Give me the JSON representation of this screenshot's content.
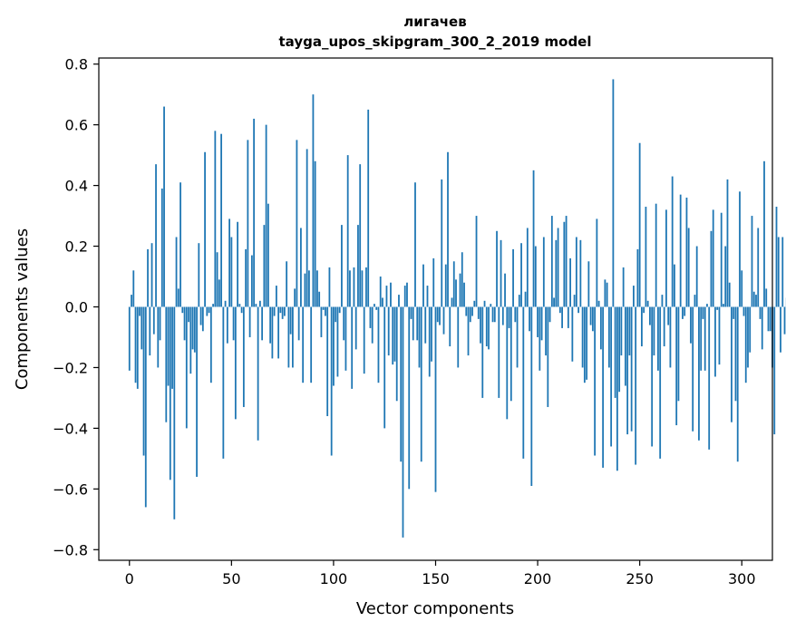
{
  "chart_data": {
    "type": "bar",
    "title_line1": "лигачев",
    "title_line2": "tayga_upos_skipgram_300_2_2019 model",
    "xlabel": "Vector components",
    "ylabel": "Components values",
    "xlim": [
      -15,
      315
    ],
    "ylim": [
      -0.835,
      0.82
    ],
    "xticks": [
      0,
      50,
      100,
      150,
      200,
      250,
      300
    ],
    "yticks": [
      -0.8,
      -0.6,
      -0.4,
      -0.2,
      0.0,
      0.2,
      0.4,
      0.6,
      0.8
    ],
    "ytick_labels": [
      "−0.8",
      "−0.6",
      "−0.4",
      "−0.2",
      "0.0",
      "0.2",
      "0.4",
      "0.6",
      "0.8"
    ],
    "xtick_labels": [
      "0",
      "50",
      "100",
      "150",
      "200",
      "250",
      "300"
    ],
    "series_color": "#1f77b4",
    "values": [
      -0.21,
      0.04,
      0.12,
      -0.25,
      -0.27,
      -0.03,
      -0.14,
      -0.49,
      -0.66,
      0.19,
      -0.16,
      0.21,
      -0.09,
      0.47,
      -0.2,
      -0.11,
      0.39,
      0.66,
      -0.38,
      -0.26,
      -0.57,
      -0.27,
      -0.7,
      0.23,
      0.06,
      0.41,
      -0.02,
      -0.11,
      -0.4,
      -0.05,
      -0.22,
      -0.14,
      -0.15,
      -0.56,
      0.21,
      -0.06,
      -0.08,
      0.51,
      -0.03,
      -0.02,
      -0.25,
      0.01,
      0.58,
      0.18,
      0.09,
      0.57,
      -0.5,
      0.02,
      -0.12,
      0.29,
      0.23,
      -0.11,
      -0.37,
      0.28,
      0.01,
      -0.02,
      -0.33,
      0.19,
      0.55,
      -0.1,
      0.17,
      0.62,
      0.01,
      -0.44,
      0.02,
      -0.11,
      0.27,
      0.6,
      0.34,
      -0.12,
      -0.17,
      -0.03,
      0.07,
      -0.17,
      -0.02,
      -0.04,
      -0.03,
      0.15,
      -0.2,
      -0.09,
      -0.2,
      0.06,
      0.55,
      -0.11,
      0.26,
      -0.25,
      0.11,
      0.52,
      0.12,
      -0.25,
      0.7,
      0.48,
      0.12,
      0.05,
      -0.1,
      -0.01,
      -0.03,
      -0.36,
      0.13,
      -0.49,
      -0.26,
      -0.05,
      -0.23,
      -0.02,
      0.27,
      -0.11,
      -0.21,
      0.5,
      0.12,
      -0.27,
      0.13,
      -0.14,
      0.27,
      0.47,
      0.12,
      -0.22,
      0.13,
      0.65,
      -0.07,
      -0.12,
      0.01,
      -0.01,
      -0.25,
      0.1,
      0.03,
      -0.4,
      0.07,
      -0.16,
      0.08,
      -0.19,
      -0.18,
      -0.31,
      0.04,
      -0.51,
      -0.76,
      0.07,
      0.08,
      -0.6,
      -0.04,
      -0.11,
      0.41,
      -0.11,
      -0.2,
      -0.51,
      0.14,
      -0.12,
      0.07,
      -0.23,
      -0.18,
      0.16,
      -0.61,
      -0.05,
      -0.06,
      0.42,
      -0.09,
      0.14,
      0.51,
      -0.13,
      0.03,
      0.15,
      0.09,
      -0.2,
      0.11,
      0.18,
      0.08,
      -0.03,
      -0.16,
      -0.05,
      -0.03,
      0.02,
      0.3,
      -0.04,
      -0.12,
      -0.3,
      0.02,
      -0.13,
      -0.14,
      0.01,
      -0.05,
      -0.05,
      0.25,
      -0.3,
      0.22,
      -0.06,
      0.11,
      -0.37,
      -0.07,
      -0.31,
      0.19,
      -0.05,
      -0.2,
      0.04,
      0.21,
      -0.5,
      0.05,
      0.26,
      -0.08,
      -0.59,
      0.45,
      0.2,
      -0.1,
      -0.21,
      -0.11,
      0.23,
      -0.16,
      -0.33,
      -0.05,
      0.3,
      0.03,
      0.22,
      0.26,
      -0.02,
      -0.07,
      0.28,
      0.3,
      -0.07,
      0.16,
      -0.18,
      0.04,
      0.23,
      -0.02,
      0.22,
      -0.2,
      -0.25,
      -0.24,
      0.15,
      -0.06,
      -0.08,
      -0.49,
      0.29,
      0.02,
      -0.14,
      -0.53,
      0.09,
      0.08,
      -0.2,
      -0.46,
      0.75,
      -0.3,
      -0.54,
      -0.28,
      -0.16,
      0.13,
      -0.26,
      -0.42,
      -0.16,
      -0.41,
      0.07,
      -0.52,
      0.19,
      0.54,
      -0.13,
      -0.02,
      0.33,
      0.02,
      -0.06,
      -0.46,
      -0.16,
      0.34,
      -0.21,
      -0.5,
      0.04,
      -0.13,
      0.32,
      -0.06,
      -0.2,
      0.43,
      0.14,
      -0.39,
      -0.31,
      0.37,
      -0.04,
      -0.03,
      0.36,
      0.26,
      -0.12,
      -0.41,
      0.04,
      0.2,
      -0.44,
      -0.21,
      -0.04,
      -0.21,
      0.01,
      -0.47,
      0.25,
      0.32,
      -0.23,
      -0.01,
      -0.19,
      0.31,
      0.01,
      0.2,
      0.42,
      0.08,
      -0.38,
      -0.04,
      -0.31,
      -0.51,
      0.38,
      0.12,
      -0.03,
      -0.25,
      -0.2,
      -0.15,
      0.3,
      0.05,
      0.04,
      0.26,
      -0.04,
      -0.14,
      0.48,
      0.06,
      -0.08,
      -0.08,
      -0.2,
      -0.42,
      0.33,
      0.23,
      -0.15,
      0.23,
      -0.09,
      0.03
    ]
  }
}
